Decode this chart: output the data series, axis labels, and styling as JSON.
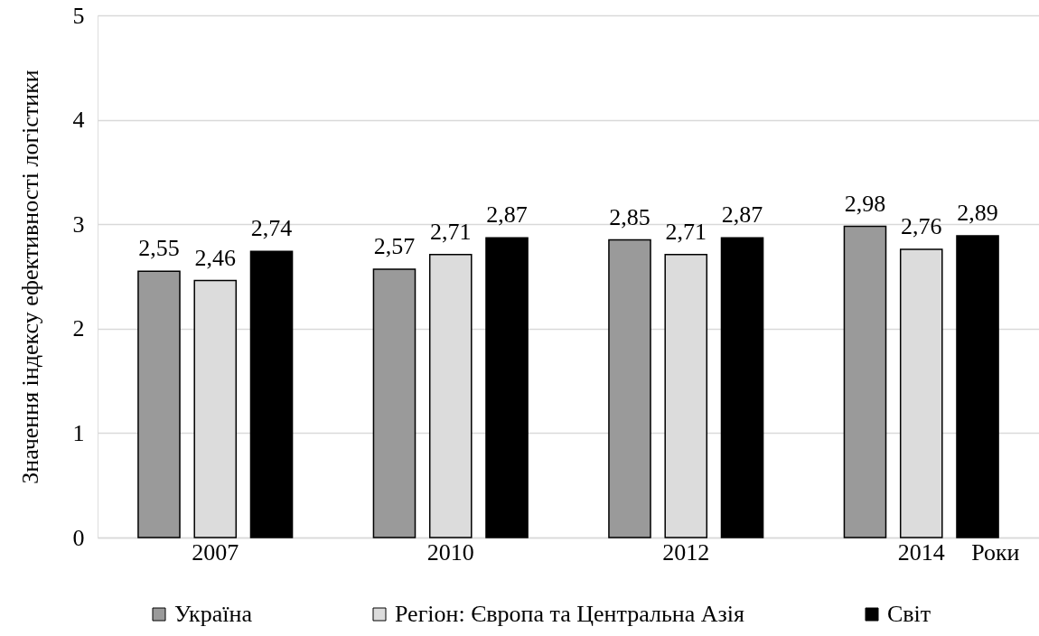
{
  "chart_data": {
    "type": "bar",
    "ylabel": "Значення індексу ефективності логістики",
    "xlabel": "Роки",
    "categories": [
      "2007",
      "2010",
      "2012",
      "2014"
    ],
    "series": [
      {
        "name": "Україна",
        "color": "#9a9a9a",
        "values": [
          2.55,
          2.57,
          2.85,
          2.98
        ],
        "value_labels": [
          "2,55",
          "2,57",
          "2,85",
          "2,98"
        ]
      },
      {
        "name": "Регіон: Європа та Центральна Азія",
        "color": "#dcdcdc",
        "values": [
          2.46,
          2.71,
          2.71,
          2.76
        ],
        "value_labels": [
          "2,46",
          "2,71",
          "2,71",
          "2,76"
        ]
      },
      {
        "name": "Світ",
        "color": "#000000",
        "values": [
          2.74,
          2.87,
          2.87,
          2.89
        ],
        "value_labels": [
          "2,74",
          "2,87",
          "2,87",
          "2,89"
        ]
      }
    ],
    "ylim": [
      0,
      5
    ],
    "yticks": [
      0,
      1,
      2,
      3,
      4,
      5
    ],
    "grid": "y",
    "legend": "bottom"
  }
}
